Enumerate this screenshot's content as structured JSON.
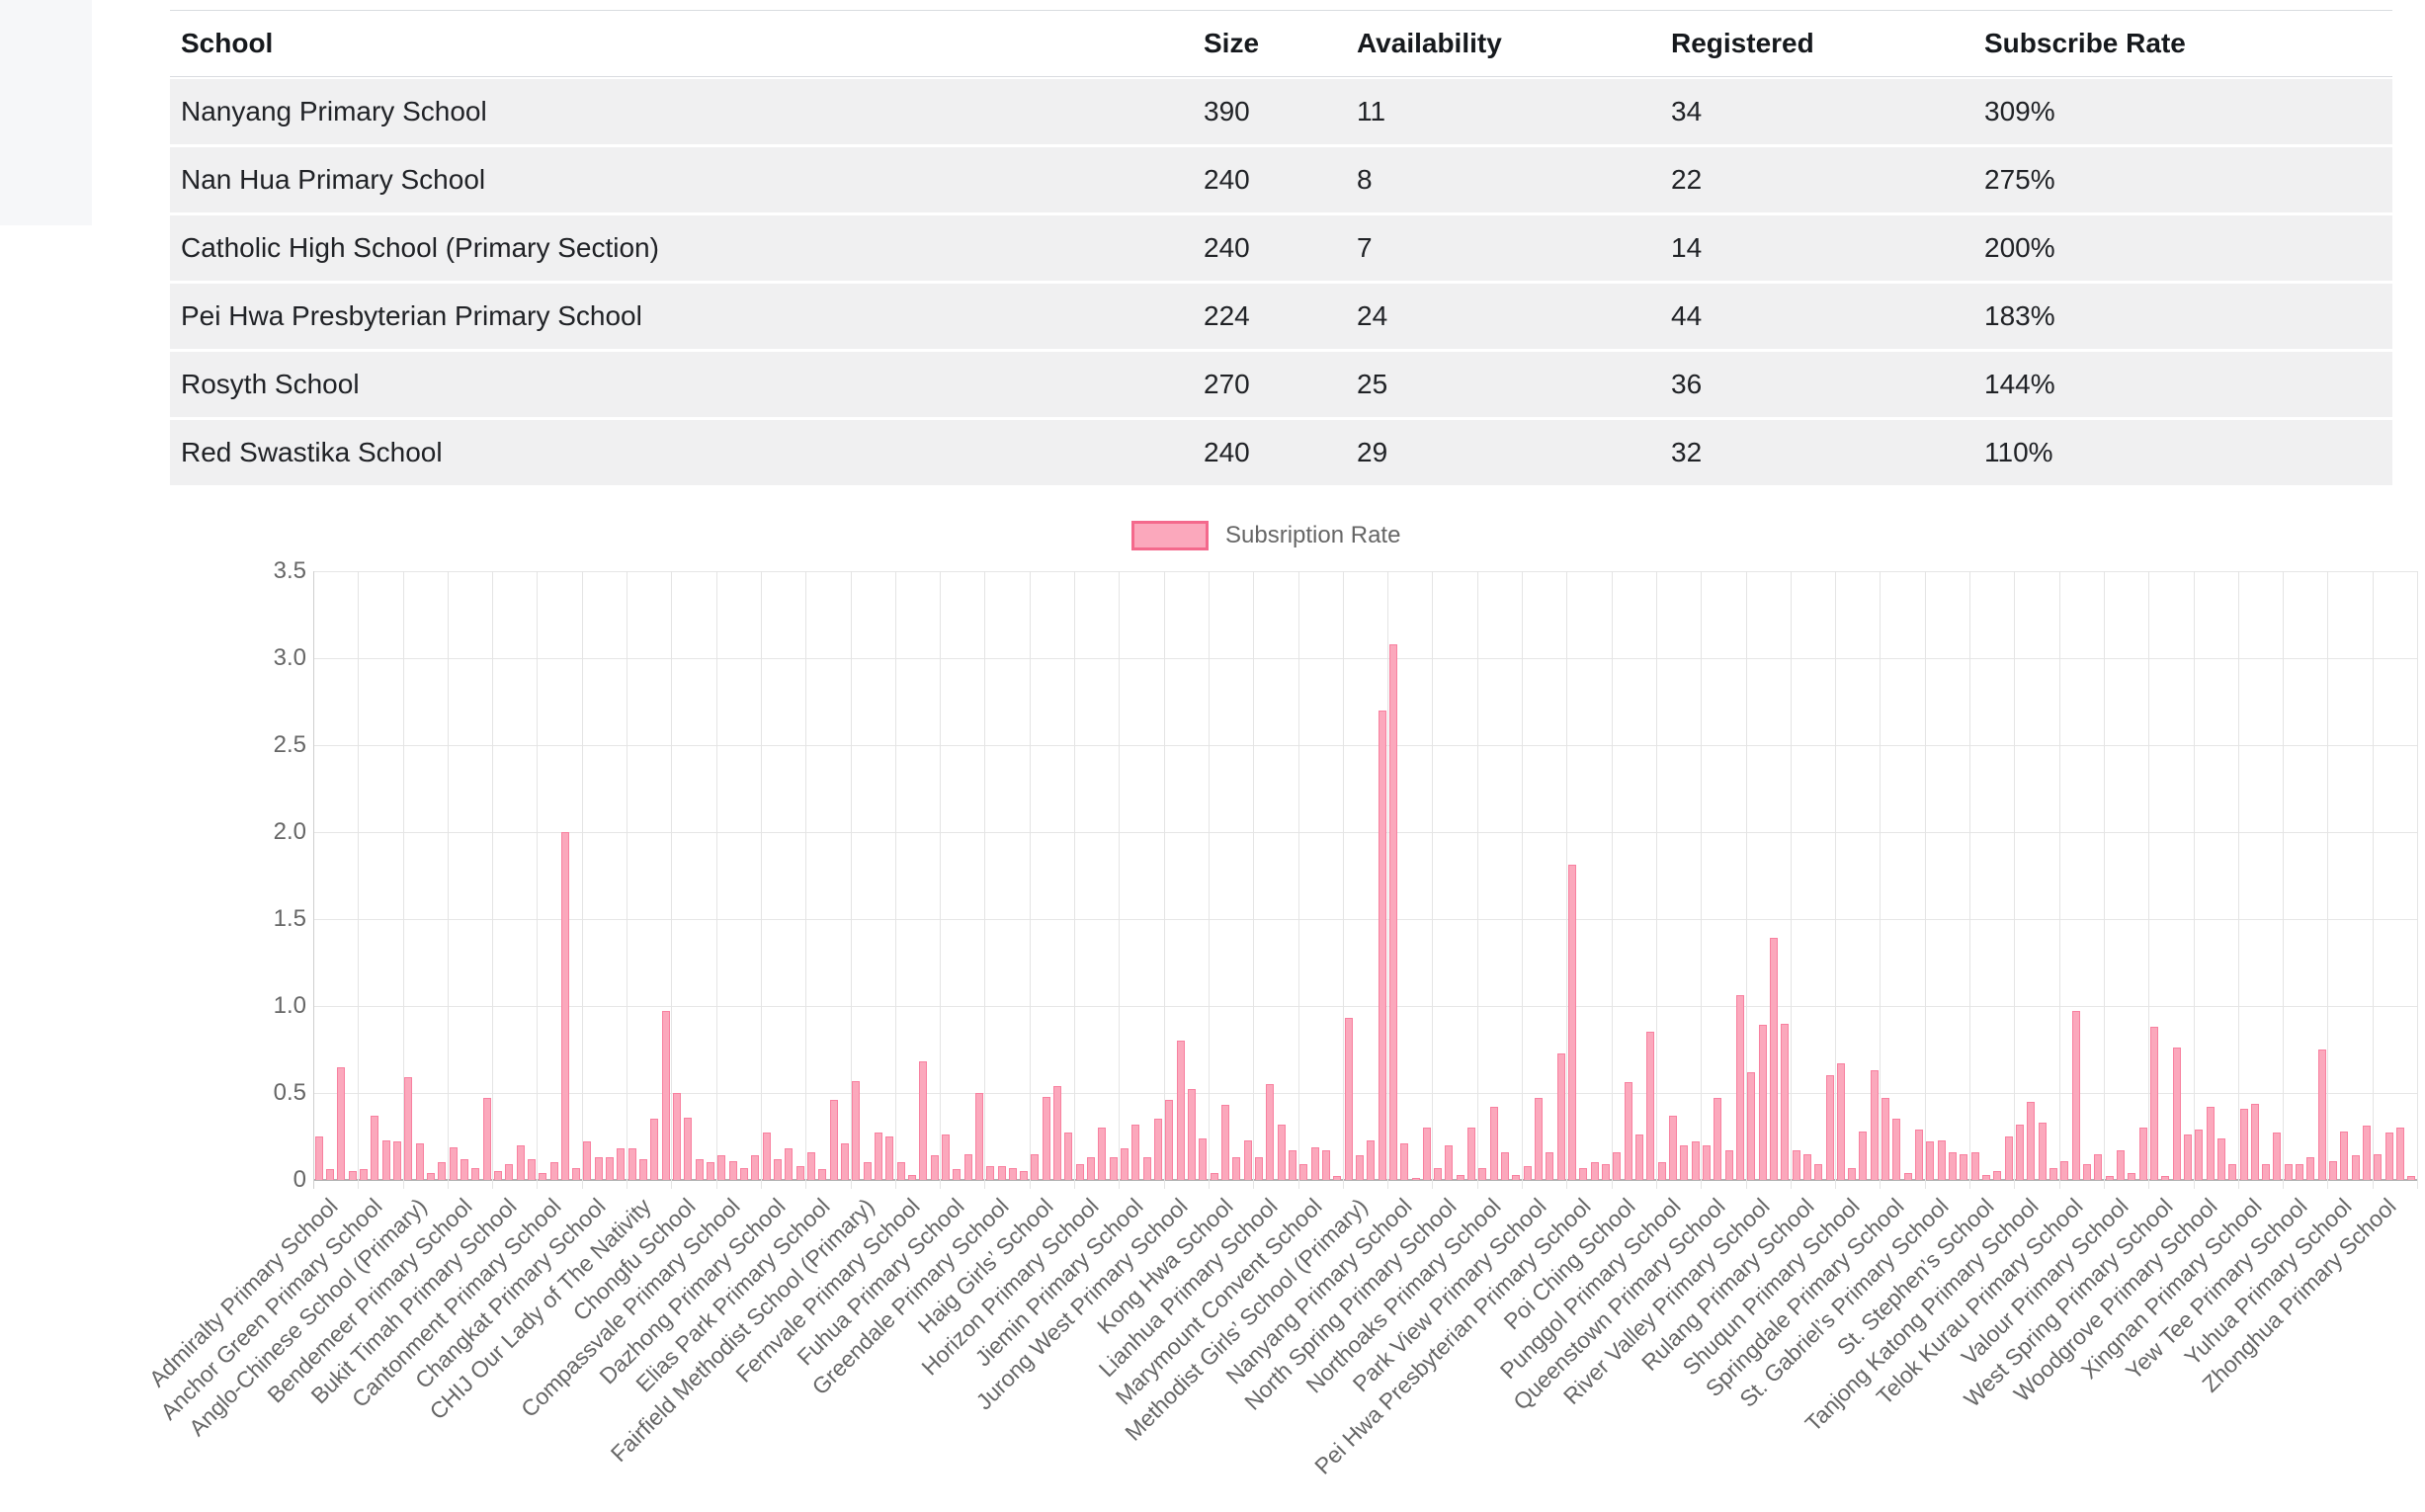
{
  "table": {
    "columns": [
      "School",
      "Size",
      "Availability",
      "Registered",
      "Subscribe Rate"
    ],
    "rows": [
      [
        "Nanyang Primary School",
        "390",
        "11",
        "34",
        "309%"
      ],
      [
        "Nan Hua Primary School",
        "240",
        "8",
        "22",
        "275%"
      ],
      [
        "Catholic High School (Primary Section)",
        "240",
        "7",
        "14",
        "200%"
      ],
      [
        "Pei Hwa Presbyterian Primary School",
        "224",
        "24",
        "44",
        "183%"
      ],
      [
        "Rosyth School",
        "270",
        "25",
        "36",
        "144%"
      ],
      [
        "Red Swastika School",
        "240",
        "29",
        "32",
        "110%"
      ]
    ]
  },
  "chart_data": {
    "type": "bar",
    "title": "",
    "legend": "Subsription Rate",
    "legend_position": "top",
    "grid": true,
    "ylabel": "",
    "xlabel": "",
    "ylim": [
      0,
      3.5
    ],
    "ytick_labels": [
      "0",
      "0.5",
      "1.0",
      "1.5",
      "2.0",
      "2.5",
      "3.0",
      "3.5"
    ],
    "ytick_values": [
      0,
      0.5,
      1.0,
      1.5,
      2.0,
      2.5,
      3.0,
      3.5
    ],
    "label_every": 4,
    "bar_fill_color": "#fba8bc",
    "bar_border_color": "#f8809f",
    "legend_border_color": "#f4698c",
    "x_tick_labels": [
      "Admiralty Primary School",
      "Anchor Green Primary School",
      "Anglo-Chinese School (Primary)",
      "Bendemeer Primary School",
      "Bukit Timah Primary School",
      "Cantonment Primary School",
      "Changkat Primary School",
      "CHIJ Our Lady of The Nativity",
      "Chongfu School",
      "Compassvale Primary School",
      "Dazhong Primary School",
      "Elias Park Primary School",
      "Fairfield Methodist School (Primary)",
      "Fernvale Primary School",
      "Fuhua Primary School",
      "Greendale Primary School",
      "Haig Girls’ School",
      "Horizon Primary School",
      "Jiemin Primary School",
      "Jurong West Primary School",
      "Kong Hwa School",
      "Lianhua Primary School",
      "Marymount Convent School",
      "Methodist Girls’ School (Primary)",
      "Nanyang Primary School",
      "North Spring Primary School",
      "Northoaks Primary School",
      "Park View Primary School",
      "Pei Hwa Presbyterian Primary School",
      "Poi Ching School",
      "Punggol Primary School",
      "Queenstown Primary School",
      "River Valley Primary School",
      "Rulang Primary School",
      "Shuqun Primary School",
      "Springdale Primary School",
      "St. Gabriel’s Primary School",
      "St. Stephen’s School",
      "Tanjong Katong Primary School",
      "Telok Kurau Primary School",
      "Valour Primary School",
      "West Spring Primary School",
      "Woodgrove Primary School",
      "Xingnan Primary School",
      "Yew Tee Primary School",
      "Yuhua Primary School",
      "Zhonghua Primary School"
    ],
    "values": [
      0.25,
      0.06,
      0.65,
      0.05,
      0.06,
      0.37,
      0.23,
      0.22,
      0.59,
      0.21,
      0.04,
      0.1,
      0.19,
      0.12,
      0.07,
      0.47,
      0.05,
      0.09,
      0.2,
      0.12,
      0.04,
      0.1,
      2.0,
      0.07,
      0.22,
      0.13,
      0.13,
      0.18,
      0.18,
      0.12,
      0.35,
      0.97,
      0.5,
      0.36,
      0.12,
      0.1,
      0.14,
      0.11,
      0.07,
      0.14,
      0.27,
      0.12,
      0.18,
      0.08,
      0.16,
      0.06,
      0.46,
      0.21,
      0.57,
      0.1,
      0.27,
      0.25,
      0.1,
      0.03,
      0.68,
      0.14,
      0.26,
      0.06,
      0.15,
      0.5,
      0.08,
      0.08,
      0.07,
      0.05,
      0.15,
      0.48,
      0.54,
      0.27,
      0.09,
      0.13,
      0.3,
      0.13,
      0.18,
      0.32,
      0.13,
      0.35,
      0.46,
      0.8,
      0.52,
      0.24,
      0.04,
      0.43,
      0.13,
      0.23,
      0.13,
      0.55,
      0.32,
      0.17,
      0.09,
      0.19,
      0.17,
      0.02,
      0.93,
      0.14,
      0.23,
      2.7,
      3.08,
      0.21,
      0.01,
      0.3,
      0.07,
      0.2,
      0.03,
      0.3,
      0.07,
      0.42,
      0.16,
      0.03,
      0.08,
      0.47,
      0.16,
      0.73,
      1.81,
      0.07,
      0.1,
      0.09,
      0.16,
      0.56,
      0.26,
      0.85,
      0.1,
      0.37,
      0.2,
      0.22,
      0.2,
      0.47,
      0.17,
      1.06,
      0.62,
      0.89,
      1.39,
      0.9,
      0.17,
      0.15,
      0.09,
      0.6,
      0.67,
      0.07,
      0.28,
      0.63,
      0.47,
      0.35,
      0.04,
      0.29,
      0.22,
      0.23,
      0.16,
      0.15,
      0.16,
      0.03,
      0.05,
      0.25,
      0.32,
      0.45,
      0.33,
      0.07,
      0.11,
      0.97,
      0.09,
      0.15,
      0.02,
      0.17,
      0.04,
      0.3,
      0.88,
      0.02,
      0.76,
      0.26,
      0.29,
      0.42,
      0.24,
      0.09,
      0.41,
      0.44,
      0.09,
      0.27,
      0.09,
      0.09,
      0.13,
      0.75,
      0.11,
      0.28,
      0.14,
      0.31,
      0.15,
      0.27,
      0.3,
      0.02
    ]
  }
}
